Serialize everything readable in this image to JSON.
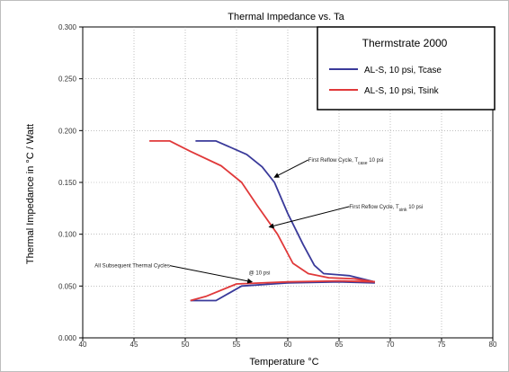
{
  "chart_data": {
    "type": "line",
    "title": "Thermal Impedance vs. Ta",
    "xlabel": "Temperature °C",
    "ylabel": "Thermal Impedance  in °C / Watt",
    "xlim": [
      40,
      80
    ],
    "ylim": [
      0.0,
      0.3
    ],
    "xticks": [
      "40",
      "45",
      "50",
      "55",
      "60",
      "65",
      "70",
      "75",
      "80"
    ],
    "yticks": [
      "0.000",
      "0.050",
      "0.100",
      "0.150",
      "0.200",
      "0.250",
      "0.300"
    ],
    "legend": {
      "title": "Thermstrate 2000",
      "placement": "top-right"
    },
    "series": [
      {
        "name": "AL-S, 10 psi, Tcase",
        "color": "#3a3a9a",
        "x": [
          51,
          53,
          56,
          57.5,
          58.7,
          60,
          61.5,
          62.6,
          63.5,
          66,
          68.5
        ],
        "y": [
          0.19,
          0.19,
          0.177,
          0.165,
          0.15,
          0.12,
          0.09,
          0.07,
          0.062,
          0.06,
          0.054
        ]
      },
      {
        "name": "AL-S, 10 psi, Tsink",
        "color": "#e0393a",
        "x": [
          46.5,
          48.5,
          50.5,
          53.5,
          55.5,
          57,
          59,
          60.5,
          62,
          64,
          66.5,
          68.5
        ],
        "y": [
          0.19,
          0.19,
          0.18,
          0.166,
          0.15,
          0.128,
          0.1,
          0.072,
          0.062,
          0.058,
          0.057,
          0.054
        ]
      },
      {
        "name": "",
        "color": "#3a3a9a",
        "x": [
          50.5,
          53,
          55.5,
          60,
          65,
          68.5
        ],
        "y": [
          0.036,
          0.036,
          0.05,
          0.053,
          0.054,
          0.053
        ]
      },
      {
        "name": "",
        "color": "#e0393a",
        "x": [
          50.5,
          52,
          55,
          60,
          65,
          68.5
        ],
        "y": [
          0.036,
          0.04,
          0.052,
          0.054,
          0.055,
          0.054
        ]
      }
    ],
    "annotations": [
      {
        "text": "First Reflow Cycle, T",
        "sub": "case",
        "tail": " 10 psi",
        "point": [
          58.7,
          0.155
        ],
        "text_at": [
          62,
          0.17
        ]
      },
      {
        "text": "First Reflow Cycle, T",
        "sub": "sink",
        "tail": " 10 psi",
        "point": [
          58.2,
          0.107
        ],
        "text_at": [
          66,
          0.125
        ]
      },
      {
        "text": "All Subsequent Thermal Cycles",
        "sub": "",
        "tail": "",
        "point": [
          56.5,
          0.054
        ],
        "text_at": [
          48.5,
          0.068
        ]
      },
      {
        "text": "@ 10 psi",
        "sub": "",
        "tail": "",
        "point": null,
        "text_at": [
          56.2,
          0.061
        ]
      }
    ]
  }
}
